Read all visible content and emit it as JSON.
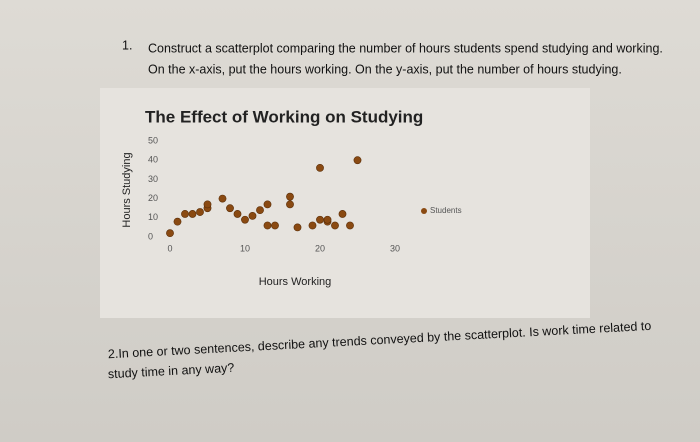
{
  "question1": {
    "number": "1.",
    "line1": "Construct a scatterplot comparing the number of hours students spend studying and working.",
    "line2": "On the x-axis, put the hours working.  On the y-axis, put the number of hours studying."
  },
  "chart_data": {
    "type": "scatter",
    "title": "The Effect of Working on Studying",
    "x_label": "Hours Working",
    "y_label": "Hours Studying",
    "series": [
      {
        "name": "Students",
        "color": "#8a4a12",
        "x": [
          0,
          1,
          2,
          3,
          4,
          5,
          5,
          7,
          8,
          9,
          10,
          11,
          12,
          13,
          13,
          14,
          16,
          16,
          17,
          19,
          20,
          20,
          21,
          21,
          22,
          23,
          24,
          25
        ],
        "values": [
          2,
          8,
          12,
          12,
          13,
          15,
          17,
          20,
          15,
          12,
          9,
          11,
          14,
          17,
          6,
          6,
          21,
          17,
          5,
          6,
          36,
          9,
          8,
          9,
          6,
          12,
          6,
          40
        ]
      }
    ],
    "xlim": [
      0,
      30
    ],
    "xticks": [
      0,
      10,
      20,
      30
    ],
    "ylim": [
      0,
      50
    ],
    "yticks": [
      0,
      10,
      20,
      30,
      40,
      50
    ],
    "legend": "right"
  },
  "question2": {
    "line1": "2.In one or two sentences, describe any trends conveyed by the scatterplot.  Is work time related to",
    "line2": "study time in any way?"
  }
}
